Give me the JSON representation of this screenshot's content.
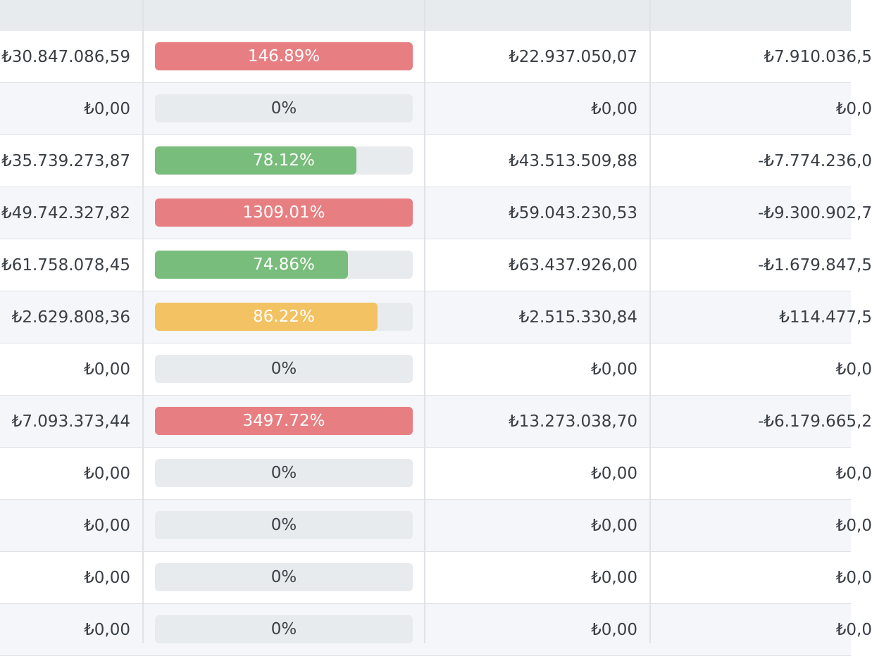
{
  "colors": {
    "header_bg": "#e8ebee",
    "bar_track": "#e8ebee",
    "over_budget": "#e77f82",
    "on_track": "#78bd7b",
    "warning": "#f2c263"
  },
  "rows": [
    {
      "col1": "₺30.847.086,59",
      "pct_label": "146.89%",
      "pct_value": 146.89,
      "status": "red",
      "col3": "₺22.937.050,07",
      "col4": "₺7.910.036,5"
    },
    {
      "col1": "₺0,00",
      "pct_label": "0%",
      "pct_value": 0,
      "status": "none",
      "col3": "₺0,00",
      "col4": "₺0,0"
    },
    {
      "col1": "₺35.739.273,87",
      "pct_label": "78.12%",
      "pct_value": 78.12,
      "status": "green",
      "col3": "₺43.513.509,88",
      "col4": "-₺7.774.236,0"
    },
    {
      "col1": "₺49.742.327,82",
      "pct_label": "1309.01%",
      "pct_value": 1309.01,
      "status": "red",
      "col3": "₺59.043.230,53",
      "col4": "-₺9.300.902,7"
    },
    {
      "col1": "₺61.758.078,45",
      "pct_label": "74.86%",
      "pct_value": 74.86,
      "status": "green",
      "col3": "₺63.437.926,00",
      "col4": "-₺1.679.847,5"
    },
    {
      "col1": "₺2.629.808,36",
      "pct_label": "86.22%",
      "pct_value": 86.22,
      "status": "yellow",
      "col3": "₺2.515.330,84",
      "col4": "₺114.477,5"
    },
    {
      "col1": "₺0,00",
      "pct_label": "0%",
      "pct_value": 0,
      "status": "none",
      "col3": "₺0,00",
      "col4": "₺0,0"
    },
    {
      "col1": "₺7.093.373,44",
      "pct_label": "3497.72%",
      "pct_value": 3497.72,
      "status": "red",
      "col3": "₺13.273.038,70",
      "col4": "-₺6.179.665,2"
    },
    {
      "col1": "₺0,00",
      "pct_label": "0%",
      "pct_value": 0,
      "status": "none",
      "col3": "₺0,00",
      "col4": "₺0,0"
    },
    {
      "col1": "₺0,00",
      "pct_label": "0%",
      "pct_value": 0,
      "status": "none",
      "col3": "₺0,00",
      "col4": "₺0,0"
    },
    {
      "col1": "₺0,00",
      "pct_label": "0%",
      "pct_value": 0,
      "status": "none",
      "col3": "₺0,00",
      "col4": "₺0,0"
    },
    {
      "col1": "₺0,00",
      "pct_label": "0%",
      "pct_value": 0,
      "status": "none",
      "col3": "₺0,00",
      "col4": "₺0,0"
    }
  ]
}
